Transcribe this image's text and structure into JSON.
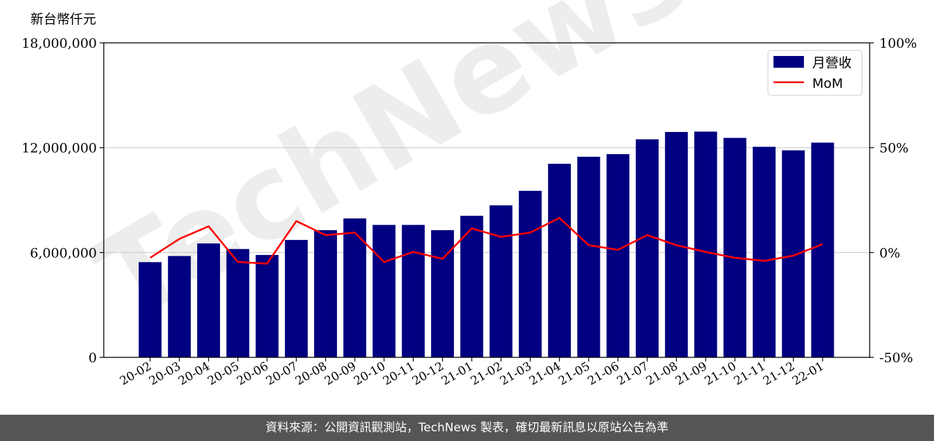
{
  "chart_data": {
    "type": "bar",
    "watermark": "TechNews",
    "y_unit_label": "新台幣仟元",
    "categories": [
      "20-02",
      "20-03",
      "20-04",
      "20-05",
      "20-06",
      "20-07",
      "20-08",
      "20-09",
      "20-10",
      "20-11",
      "20-12",
      "21-01",
      "21-02",
      "21-03",
      "21-04",
      "21-05",
      "21-06",
      "21-07",
      "21-08",
      "21-09",
      "21-10",
      "21-11",
      "21-12",
      "22-01"
    ],
    "series": [
      {
        "name": "月營收",
        "type": "bar",
        "axis": "left",
        "color": "#000080",
        "values": [
          5450000,
          5800000,
          6520000,
          6200000,
          5860000,
          6720000,
          7280000,
          7950000,
          7580000,
          7580000,
          7280000,
          8100000,
          8700000,
          9530000,
          11080000,
          11480000,
          11630000,
          12480000,
          12900000,
          12920000,
          12560000,
          12050000,
          11850000,
          12290000
        ]
      },
      {
        "name": "MoM",
        "type": "line",
        "axis": "right",
        "color": "#ff0000",
        "values": [
          -2.5,
          6.5,
          12.5,
          -4.5,
          -5.3,
          15,
          8.3,
          9.5,
          -4.5,
          0.3,
          -3,
          11.5,
          7.5,
          9.5,
          16.5,
          3.5,
          1.3,
          8.3,
          3.5,
          0.3,
          -2.5,
          -4,
          -1.5,
          4
        ]
      }
    ],
    "left_axis": {
      "ylim": [
        0,
        18000000
      ],
      "ticks": [
        0,
        6000000,
        12000000,
        18000000
      ],
      "tick_labels": [
        "0",
        "6,000,000",
        "12,000,000",
        "18,000,000"
      ]
    },
    "right_axis": {
      "ylim": [
        -50,
        100
      ],
      "ticks": [
        -50,
        0,
        50,
        100
      ],
      "tick_labels": [
        "-50%",
        "0%",
        "50%",
        "100%"
      ]
    },
    "grid": "horizontal",
    "legend_position": "top-right",
    "bar_color": "#000080",
    "line_color": "#ff0000"
  },
  "footer": {
    "source_text": "資料來源：公開資訊觀測站，TechNews 製表，確切最新訊息以原站公告為準"
  }
}
